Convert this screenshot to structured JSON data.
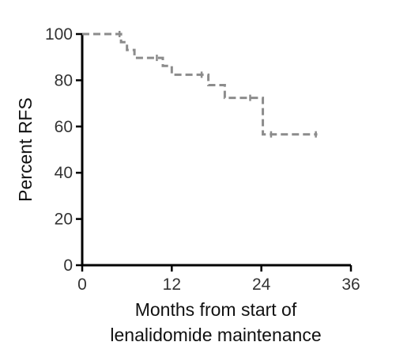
{
  "chart_data": {
    "type": "line",
    "style": "step",
    "xlabel_lines": [
      "Months from start of",
      "lenalidomide maintenance"
    ],
    "ylabel": "Percent RFS",
    "xlim": [
      0,
      36
    ],
    "ylim": [
      0,
      100
    ],
    "x_ticks": [
      0,
      12,
      24,
      36
    ],
    "y_ticks": [
      0,
      20,
      40,
      60,
      80,
      100
    ],
    "x_tick_labels": [
      "0",
      "12",
      "24",
      "36"
    ],
    "y_tick_labels": [
      "0",
      "20",
      "40",
      "60",
      "80",
      "100"
    ],
    "grid": false,
    "legend": "none",
    "series": [
      {
        "color": "#8c8c8c",
        "line_style": "dashed",
        "steps": [
          {
            "x": 0,
            "y": 100
          },
          {
            "x": 5.2,
            "y": 96.5
          },
          {
            "x": 6.0,
            "y": 93.1
          },
          {
            "x": 7.0,
            "y": 89.7
          },
          {
            "x": 10.8,
            "y": 86.2
          },
          {
            "x": 12.0,
            "y": 82.4
          },
          {
            "x": 16.9,
            "y": 77.9
          },
          {
            "x": 19.1,
            "y": 72.4
          },
          {
            "x": 24.2,
            "y": 56.6
          },
          {
            "x": 31.5,
            "y": 56.6
          }
        ],
        "censored": [
          {
            "x": 5.0,
            "y": 100
          },
          {
            "x": 10.0,
            "y": 89.7
          },
          {
            "x": 16.0,
            "y": 82.4
          },
          {
            "x": 22.5,
            "y": 72.4
          },
          {
            "x": 25.3,
            "y": 56.6
          },
          {
            "x": 31.3,
            "y": 56.6
          }
        ]
      }
    ]
  }
}
